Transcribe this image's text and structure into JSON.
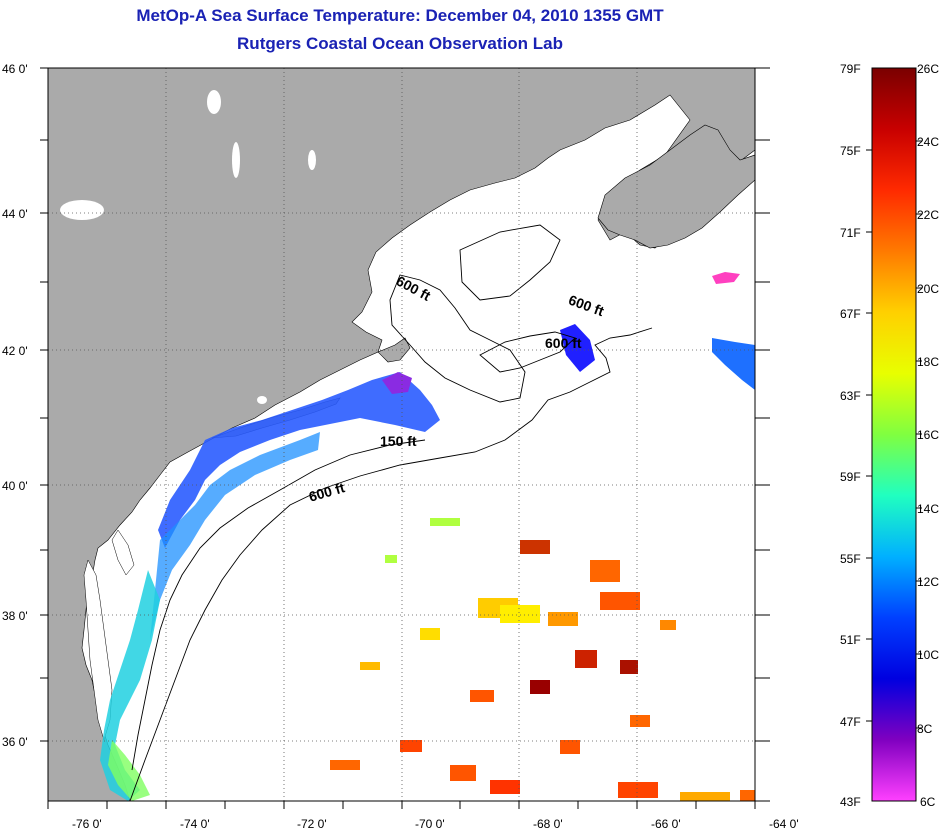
{
  "header": {
    "title": "MetOp-A Sea Surface Temperature:  December 04, 2010 1355 GMT",
    "subtitle": "Rutgers Coastal Ocean Observation Lab"
  },
  "map": {
    "lon_labels": [
      "-76 0'",
      "-74 0'",
      "-72 0'",
      "-70 0'",
      "-68 0'",
      "-66 0'",
      "-64 0'"
    ],
    "lat_labels": [
      "46 0'",
      "44 0'",
      "42 0'",
      "40 0'",
      "38 0'",
      "36 0'"
    ],
    "contour_labels": [
      "600 ft",
      "600 ft",
      "600 ft",
      "150 ft",
      "600 ft"
    ],
    "colors": {
      "land": "#aaaaaa",
      "ocean": "#ffffff",
      "grid": "#555555"
    }
  },
  "colorbar": {
    "fahrenheit": [
      "79F",
      "75F",
      "71F",
      "67F",
      "63F",
      "59F",
      "55F",
      "51F",
      "47F",
      "43F"
    ],
    "celsius": [
      "26C",
      "24C",
      "22C",
      "20C",
      "18C",
      "16C",
      "14C",
      "12C",
      "10C",
      "8C",
      "6C"
    ],
    "colors": [
      "#7a0000",
      "#c80000",
      "#ff2a00",
      "#ff7a00",
      "#ffd000",
      "#e8ff00",
      "#80ff40",
      "#20ffc0",
      "#00b0ff",
      "#0040ff",
      "#0000e0",
      "#8000c0",
      "#ff40ff"
    ]
  }
}
